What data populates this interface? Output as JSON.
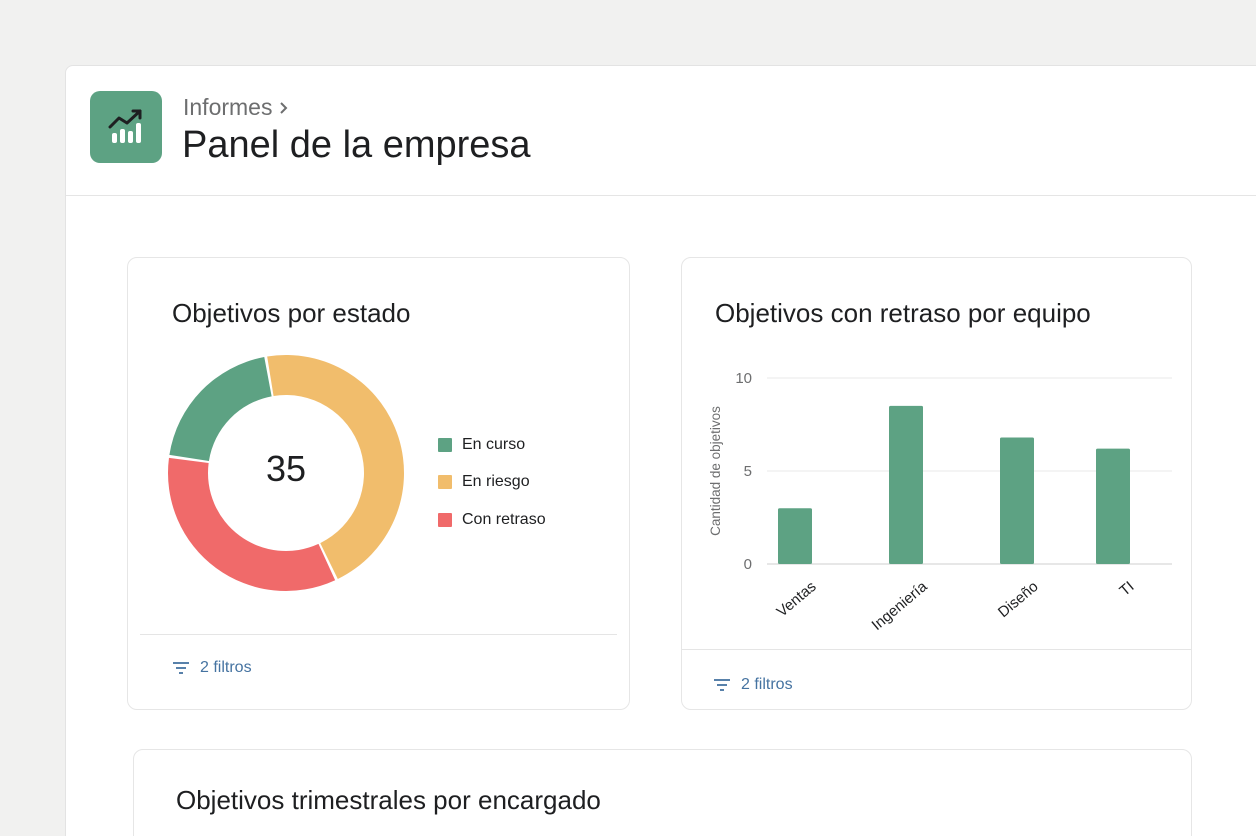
{
  "header": {
    "breadcrumb": "Informes",
    "title": "Panel de la empresa"
  },
  "colors": {
    "on_track": "#5da283",
    "at_risk": "#f1bd6c",
    "delayed": "#f06a6a",
    "link": "#4573a1"
  },
  "cards": {
    "status": {
      "title": "Objetivos por estado",
      "filters_label": "2 filtros",
      "total": "35"
    },
    "delayed": {
      "title": "Objetivos con retraso por equipo",
      "filters_label": "2 filtros"
    },
    "quarterly": {
      "title": "Objetivos trimestrales por encargado"
    }
  },
  "chart_data": [
    {
      "type": "pie",
      "title": "Objetivos por estado",
      "center_label": "35",
      "series": [
        {
          "name": "En curso",
          "value": 7,
          "color": "#5da283"
        },
        {
          "name": "En riesgo",
          "value": 16,
          "color": "#f1bd6c"
        },
        {
          "name": "Con retraso",
          "value": 12,
          "color": "#f06a6a"
        }
      ],
      "legend": "right"
    },
    {
      "type": "bar",
      "title": "Objetivos con retraso por equipo",
      "categories": [
        "Ventas",
        "Ingeniería",
        "Diseño",
        "TI"
      ],
      "values": [
        3,
        8.5,
        6.8,
        6.2
      ],
      "ylabel": "Cantidad de objetivos",
      "xlabel": "",
      "ylim": [
        0,
        10
      ],
      "yticks": [
        0,
        5,
        10
      ],
      "grid": true,
      "color": "#5da283"
    }
  ]
}
